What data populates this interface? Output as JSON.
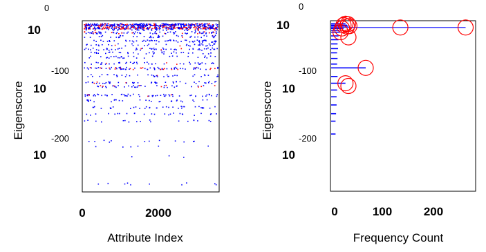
{
  "chart_data": [
    {
      "type": "scatter",
      "xlabel": "Attribute Index",
      "ylabel": "Eigenscore",
      "xlim": [
        0,
        3600
      ],
      "ylim_exponent": [
        -275,
        0
      ],
      "y_scale": "log",
      "xticks": [
        {
          "value": 0,
          "label": "0"
        },
        {
          "value": 2000,
          "label": "2000"
        }
      ],
      "yticks": [
        {
          "exponent": 0,
          "base": "10",
          "exp_label": "0"
        },
        {
          "exponent": -100,
          "base": "10",
          "exp_label": "-100"
        },
        {
          "exponent": -200,
          "base": "10",
          "exp_label": "-200"
        }
      ],
      "series_colors": {
        "blue": "#0000ff",
        "red": "#ff0000"
      },
      "bands": [
        {
          "exponent": -3,
          "count": 260,
          "red_fraction": 0.25
        },
        {
          "exponent": -6,
          "count": 140,
          "red_fraction": 0.1
        },
        {
          "exponent": -10,
          "count": 220,
          "red_fraction": 0.6
        },
        {
          "exponent": -13,
          "count": 70,
          "red_fraction": 0.1
        },
        {
          "exponent": -20,
          "count": 80,
          "red_fraction": 0.2
        },
        {
          "exponent": -28,
          "count": 45,
          "red_fraction": 0.05
        },
        {
          "exponent": -38,
          "count": 60,
          "red_fraction": 0.05
        },
        {
          "exponent": -46,
          "count": 40,
          "red_fraction": 0.05
        },
        {
          "exponent": -55,
          "count": 55,
          "red_fraction": 0.1
        },
        {
          "exponent": -63,
          "count": 35,
          "red_fraction": 0.0
        },
        {
          "exponent": -72,
          "count": 30,
          "red_fraction": 0.0
        },
        {
          "exponent": -85,
          "count": 45,
          "red_fraction": 0.05
        },
        {
          "exponent": -96,
          "count": 80,
          "red_fraction": 0.25
        },
        {
          "exponent": -108,
          "count": 40,
          "red_fraction": 0.05
        },
        {
          "exponent": -118,
          "count": 45,
          "red_fraction": 0.1
        },
        {
          "exponent": -124,
          "count": 40,
          "red_fraction": 0.2
        },
        {
          "exponent": -137,
          "count": 60,
          "red_fraction": 0.05
        },
        {
          "exponent": -145,
          "count": 30,
          "red_fraction": 0.0
        },
        {
          "exponent": -155,
          "count": 35,
          "red_fraction": 0.0
        },
        {
          "exponent": -165,
          "count": 25,
          "red_fraction": 0.0
        },
        {
          "exponent": -175,
          "count": 18,
          "red_fraction": 0.0
        },
        {
          "exponent": -205,
          "count": 12,
          "red_fraction": 0.0
        },
        {
          "exponent": -213,
          "count": 6,
          "red_fraction": 0.0
        },
        {
          "exponent": -228,
          "count": 3,
          "red_fraction": 0.0
        },
        {
          "exponent": -268,
          "count": 10,
          "red_fraction": 0.0
        }
      ]
    },
    {
      "type": "bar",
      "orientation": "horizontal",
      "xlabel": "Frequency Count",
      "ylabel": "Eigenscore",
      "xlim": [
        0,
        280
      ],
      "ylim_exponent": [
        -275,
        0
      ],
      "y_scale": "log",
      "xticks": [
        {
          "value": 0,
          "label": "0"
        },
        {
          "value": 100,
          "label": "100"
        },
        {
          "value": 200,
          "label": "200"
        }
      ],
      "yticks": [
        {
          "exponent": 0,
          "base": "10",
          "exp_label": "0"
        },
        {
          "exponent": -100,
          "base": "10",
          "exp_label": "-100"
        },
        {
          "exponent": -200,
          "base": "10",
          "exp_label": "-200"
        }
      ],
      "bar_color": "#0000ff",
      "marker_color": "#ff0000",
      "bars": [
        {
          "exponent": -2,
          "count": 22
        },
        {
          "exponent": -5,
          "count": 25
        },
        {
          "exponent": -7,
          "count": 28
        },
        {
          "exponent": -10,
          "count": 265
        },
        {
          "exponent": -12,
          "count": 18
        },
        {
          "exponent": -16,
          "count": 10
        },
        {
          "exponent": -20,
          "count": 12
        },
        {
          "exponent": -28,
          "count": 8
        },
        {
          "exponent": -36,
          "count": 8
        },
        {
          "exponent": -45,
          "count": 6
        },
        {
          "exponent": -55,
          "count": 7
        },
        {
          "exponent": -64,
          "count": 5
        },
        {
          "exponent": -76,
          "count": 6
        },
        {
          "exponent": -88,
          "count": 5
        },
        {
          "exponent": -96,
          "count": 63
        },
        {
          "exponent": -110,
          "count": 6
        },
        {
          "exponent": -120,
          "count": 22
        },
        {
          "exponent": -130,
          "count": 5
        },
        {
          "exponent": -140,
          "count": 4
        },
        {
          "exponent": -152,
          "count": 4
        },
        {
          "exponent": -165,
          "count": 3
        },
        {
          "exponent": -176,
          "count": 2
        },
        {
          "exponent": -195,
          "count": 2
        }
      ],
      "markers": [
        {
          "exponent": -2,
          "count": 22
        },
        {
          "exponent": -3,
          "count": 27
        },
        {
          "exponent": -5,
          "count": 18
        },
        {
          "exponent": -7,
          "count": 30
        },
        {
          "exponent": -8,
          "count": 25
        },
        {
          "exponent": -10,
          "count": 133
        },
        {
          "exponent": -10,
          "count": 265
        },
        {
          "exponent": -12,
          "count": 15
        },
        {
          "exponent": -20,
          "count": 12
        },
        {
          "exponent": -31,
          "count": 28
        },
        {
          "exponent": -96,
          "count": 63
        },
        {
          "exponent": -120,
          "count": 22
        },
        {
          "exponent": -124,
          "count": 28
        }
      ]
    }
  ]
}
